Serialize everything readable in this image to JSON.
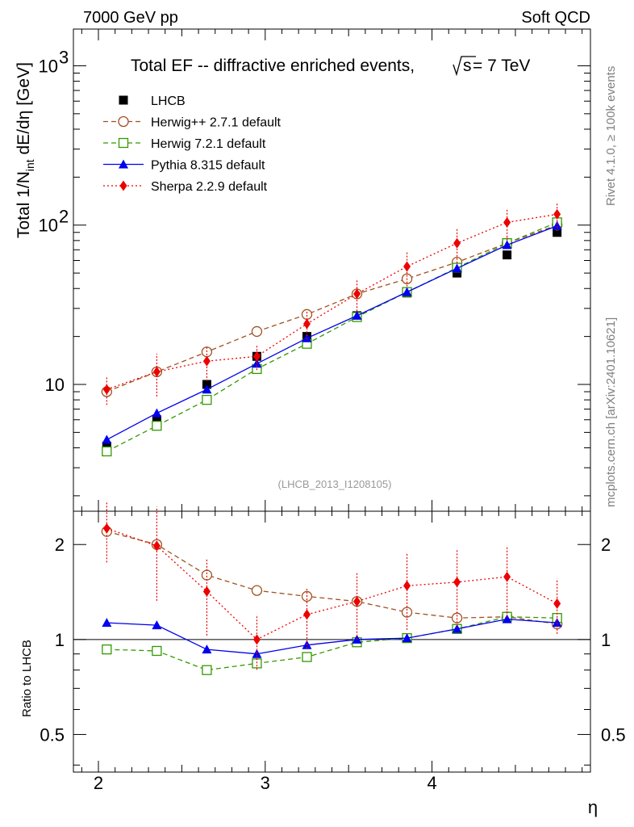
{
  "header": {
    "left": "7000 GeV pp",
    "right": "Soft QCD"
  },
  "side_labels": {
    "top": "Rivet 4.1.0, ≥ 100k events",
    "bottom": "mcplots.cern.ch [arXiv:2401.10621]"
  },
  "chart_data": {
    "type": "line",
    "title": "Total EF -- diffractive enriched events,",
    "title_sqrt": "s",
    "title_energy": "= 7 TeV",
    "reference": "(LHCB_2013_I1208105)",
    "ylabel": {
      "prefix": "Total 1/N",
      "sub": "int",
      "suffix": "  dE/dη [GeV]"
    },
    "ratio_ylabel": "Ratio to LHCB",
    "xlabel": "η",
    "xlim": [
      1.85,
      4.95
    ],
    "ylim": [
      1.6,
      1700
    ],
    "ratio_ylim": [
      0.38,
      2.55
    ],
    "x_ticks": [
      2,
      3,
      4
    ],
    "x_tick_labels": [
      "2",
      "3",
      "4"
    ],
    "y_ticks": [
      10,
      100,
      1000
    ],
    "y_tick_labels": [
      "10",
      "10",
      "10"
    ],
    "y_tick_exponents": [
      "",
      "2",
      "3"
    ],
    "ratio_ticks": [
      0.5,
      1,
      2
    ],
    "ratio_tick_labels": [
      "0.5",
      "1",
      "2"
    ],
    "x": [
      2.05,
      2.35,
      2.65,
      2.95,
      3.25,
      3.55,
      3.85,
      4.15,
      4.45,
      4.75
    ],
    "series": [
      {
        "name": "LHCB",
        "color": "#000000",
        "marker": "square-filled",
        "line": "none",
        "values": [
          4.1,
          6.0,
          10.0,
          15.0,
          20.0,
          27.0,
          37.5,
          50.0,
          65.0,
          90.0
        ]
      },
      {
        "name": "Herwig++ 2.7.1 default",
        "color": "#a0501e",
        "marker": "circle-open",
        "line": "dashed",
        "values": [
          9.0,
          12.0,
          16.0,
          21.5,
          27.5,
          37.0,
          46.0,
          58.5,
          77.0,
          100.0
        ],
        "ratio": [
          2.2,
          2.0,
          1.6,
          1.43,
          1.37,
          1.32,
          1.22,
          1.17,
          1.18,
          1.12
        ]
      },
      {
        "name": "Herwig 7.2.1 default",
        "color": "#339900",
        "marker": "square-open",
        "line": "dashed",
        "values": [
          3.8,
          5.5,
          8.0,
          12.5,
          18.0,
          26.5,
          38.0,
          54.0,
          77.0,
          104.0
        ],
        "ratio": [
          0.93,
          0.92,
          0.8,
          0.84,
          0.88,
          0.98,
          1.01,
          1.08,
          1.18,
          1.17
        ]
      },
      {
        "name": "Pythia 8.315 default",
        "color": "#0000ee",
        "marker": "triangle-filled",
        "line": "solid",
        "values": [
          4.5,
          6.6,
          9.3,
          13.5,
          19.5,
          27.0,
          38.0,
          53.5,
          75.0,
          99.0
        ],
        "ratio": [
          1.13,
          1.11,
          0.93,
          0.9,
          0.96,
          1.0,
          1.01,
          1.08,
          1.16,
          1.13
        ]
      },
      {
        "name": "Sherpa 2.2.9 default",
        "color": "#ee0000",
        "marker": "diamond-filled",
        "line": "dotted",
        "values": [
          9.3,
          12.0,
          14.0,
          15.0,
          24.0,
          37.0,
          55.0,
          77.0,
          104.0,
          117.0
        ],
        "ratio": [
          2.25,
          1.98,
          1.42,
          1.0,
          1.2,
          1.32,
          1.48,
          1.52,
          1.58,
          1.3
        ],
        "errors": [
          0.2,
          0.3,
          0.25,
          0.18,
          0.2,
          0.22,
          0.25,
          0.25,
          0.23,
          0.18
        ]
      }
    ]
  }
}
